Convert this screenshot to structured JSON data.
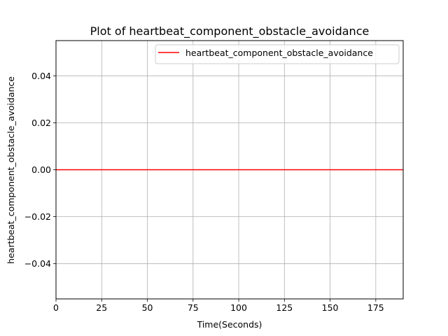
{
  "chart_data": {
    "type": "line",
    "title": "Plot of heartbeat_component_obstacle_avoidance",
    "xlabel": "Time(Seconds)",
    "ylabel": "heartbeat_component_obstacle_avoidance",
    "xlim": [
      0,
      190
    ],
    "ylim": [
      -0.055,
      0.055
    ],
    "x_ticks": [
      0,
      25,
      50,
      75,
      100,
      125,
      150,
      175
    ],
    "x_tick_labels": [
      "0",
      "25",
      "50",
      "75",
      "100",
      "125",
      "150",
      "175"
    ],
    "y_ticks": [
      -0.04,
      -0.02,
      0.0,
      0.02,
      0.04
    ],
    "y_tick_labels": [
      "−0.04",
      "−0.02",
      "0.00",
      "0.02",
      "0.04"
    ],
    "grid": true,
    "legend_position": "top-right",
    "series": [
      {
        "name": "heartbeat_component_obstacle_avoidance",
        "color": "#ff0000",
        "x": [
          0,
          190
        ],
        "y": [
          0,
          0
        ]
      }
    ]
  }
}
